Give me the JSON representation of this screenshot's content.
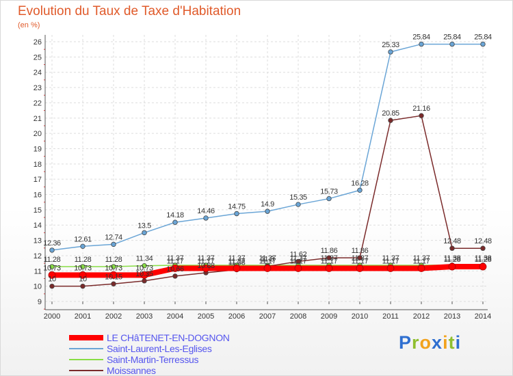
{
  "title": "Evolution du Taux de Taxe d'Habitation",
  "subtitle": "(en %)",
  "brand": {
    "letters": [
      "P",
      "r",
      "o",
      "x",
      "i",
      "t",
      "i"
    ],
    "colors": [
      "#2f6fd0",
      "#8fbf2f",
      "#f2a21d",
      "#2f6fd0",
      "#f2a21d",
      "#8fbf2f",
      "#2f6fd0"
    ]
  },
  "chart_data": {
    "type": "line",
    "title": "Evolution du Taux de Taxe d'Habitation",
    "ylabel": "(en %)",
    "xlabel": "",
    "x": [
      "2000",
      "2001",
      "2002",
      "2003",
      "2004",
      "2005",
      "2006",
      "2007",
      "2008",
      "2009",
      "2010",
      "2011",
      "2012",
      "2013",
      "2014"
    ],
    "ylim": [
      9,
      26
    ],
    "yticks": [
      "9",
      "10",
      "11",
      "12",
      "13",
      "14",
      "15",
      "16",
      "17",
      "18",
      "19",
      "20",
      "21",
      "22",
      "23",
      "24",
      "25",
      "26"
    ],
    "grid": true,
    "legend_position": "bottom-left",
    "series": [
      {
        "name": "LE CHâTENET-EN-DOGNON",
        "color": "#ff0000",
        "values": [
          10.73,
          10.73,
          10.73,
          10.73,
          11.17,
          11.17,
          11.17,
          11.17,
          11.17,
          11.17,
          11.17,
          11.17,
          11.17,
          11.28,
          11.28
        ],
        "labels": [
          "10.73",
          "10.73",
          "10.73",
          "10.73",
          "11.17",
          "11.17",
          "11.17",
          "11.17",
          "11.17",
          "11.17",
          "11.17",
          "11.17",
          "11.17",
          "11.28",
          "11.28"
        ]
      },
      {
        "name": "Saint-Laurent-Les-Eglises",
        "color": "#6aa5d6",
        "values": [
          12.36,
          12.61,
          12.74,
          13.5,
          14.18,
          14.46,
          14.75,
          14.9,
          15.35,
          15.73,
          16.28,
          25.33,
          25.84,
          25.84,
          25.84
        ],
        "labels": [
          "12.36",
          "12.61",
          "12.74",
          "13.5",
          "14.18",
          "14.46",
          "14.75",
          "14.9",
          "15.35",
          "15.73",
          "16.28",
          "25.33",
          "25.84",
          "25.84",
          "25.84"
        ]
      },
      {
        "name": "Saint-Martin-Terressus",
        "color": "#88dd44",
        "values": [
          11.28,
          11.28,
          11.28,
          11.34,
          11.37,
          11.37,
          11.37,
          11.37,
          11.37,
          11.37,
          11.37,
          11.37,
          11.37,
          11.38,
          11.38
        ],
        "labels": [
          "11.28",
          "11.28",
          "11.28",
          "11.34",
          "11.37",
          "11.37",
          "11.37",
          "11.37",
          "11.37",
          "11.37",
          "11.37",
          "11.37",
          "11.37",
          "11.38",
          "11.38"
        ]
      },
      {
        "name": "Moissannes",
        "color": "#7a2a2a",
        "values": [
          10.0,
          10.0,
          10.15,
          10.35,
          10.66,
          10.88,
          11.08,
          11.3,
          11.62,
          11.86,
          11.86,
          20.85,
          21.16,
          12.48,
          12.48
        ],
        "labels": [
          "10",
          "10",
          "10.15",
          "10.35",
          "10.66",
          "10.88",
          "11.08",
          "11.3",
          "11.62",
          "11.86",
          "11.86",
          "20.85",
          "21.16",
          "12.48",
          "12.48"
        ]
      }
    ]
  }
}
